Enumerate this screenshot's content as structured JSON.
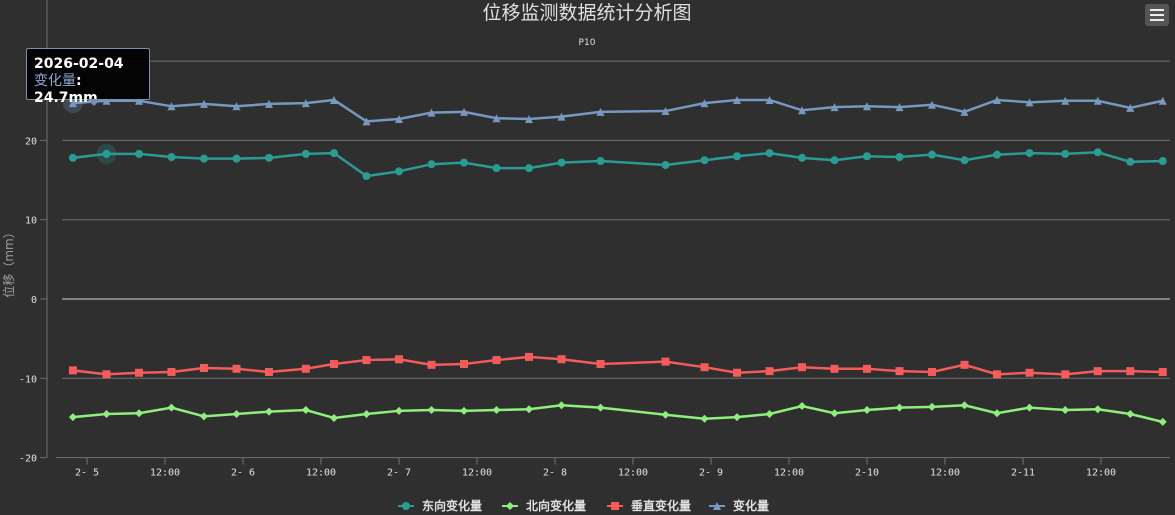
{
  "chart_data": {
    "type": "line",
    "title": "位移监测数据统计分析图",
    "subtitle": "P10",
    "ylabel": "位移（mm）",
    "xlabel": "",
    "ylim": [
      -20,
      30
    ],
    "yticks": [
      -20,
      -10,
      0,
      10,
      20
    ],
    "xticks": [
      "2- 5",
      "12:00",
      "2- 6",
      "12:00",
      "2- 7",
      "12:00",
      "2- 8",
      "12:00",
      "2- 9",
      "12:00",
      "2-10",
      "12:00",
      "2-11",
      "12:00"
    ],
    "grid": true,
    "legend_position": "bottom",
    "x": [
      "2026-02-04 21:50",
      "2026-02-05 03:00",
      "2026-02-05 08:00",
      "2026-02-05 13:00",
      "2026-02-05 18:00",
      "2026-02-05 23:00",
      "2026-02-06 04:00",
      "2026-02-06 09:40",
      "2026-02-06 14:00",
      "2026-02-06 19:00",
      "2026-02-07 00:00",
      "2026-02-07 05:00",
      "2026-02-07 10:00",
      "2026-02-07 15:00",
      "2026-02-07 20:00",
      "2026-02-08 01:00",
      "2026-02-08 07:00",
      "2026-02-08 17:00",
      "2026-02-08 23:00",
      "2026-02-09 04:00",
      "2026-02-09 09:00",
      "2026-02-09 14:00",
      "2026-02-09 19:00",
      "2026-02-10 00:00",
      "2026-02-10 05:00",
      "2026-02-10 10:00",
      "2026-02-10 15:00",
      "2026-02-10 20:00",
      "2026-02-11 01:00",
      "2026-02-11 06:30",
      "2026-02-11 11:30",
      "2026-02-11 16:30",
      "2026-02-11 21:30"
    ],
    "series": [
      {
        "name": "东向变化量",
        "color": "#2b9c94",
        "marker": "circle",
        "values": [
          17.8,
          18.3,
          18.3,
          17.9,
          17.7,
          17.7,
          17.8,
          18.3,
          18.4,
          15.5,
          16.1,
          17.0,
          17.2,
          16.5,
          16.5,
          17.2,
          17.4,
          16.9,
          17.5,
          18.0,
          18.4,
          17.8,
          17.5,
          18.0,
          17.9,
          18.2,
          17.5,
          18.2,
          18.4,
          18.3,
          18.5,
          17.3,
          17.4
        ]
      },
      {
        "name": "北向变化量",
        "color": "#90ee7e",
        "marker": "diamond",
        "values": [
          -14.9,
          -14.5,
          -14.4,
          -13.7,
          -14.8,
          -14.5,
          -14.2,
          -14.0,
          -15.0,
          -14.5,
          -14.1,
          -14.0,
          -14.1,
          -14.0,
          -13.9,
          -13.4,
          -13.7,
          -14.6,
          -15.1,
          -14.9,
          -14.5,
          -13.5,
          -14.4,
          -14.0,
          -13.7,
          -13.6,
          -13.4,
          -14.4,
          -13.7,
          -14.0,
          -13.9,
          -14.5,
          -15.5
        ]
      },
      {
        "name": "垂直变化量",
        "color": "#f45b5b",
        "marker": "square",
        "values": [
          -9.0,
          -9.5,
          -9.3,
          -9.2,
          -8.7,
          -8.8,
          -9.2,
          -8.8,
          -8.2,
          -7.7,
          -7.6,
          -8.3,
          -8.2,
          -7.7,
          -7.3,
          -7.6,
          -8.2,
          -7.9,
          -8.6,
          -9.3,
          -9.1,
          -8.6,
          -8.8,
          -8.8,
          -9.1,
          -9.2,
          -8.3,
          -9.5,
          -9.3,
          -9.5,
          -9.1,
          -9.1,
          -9.2
        ]
      },
      {
        "name": "变化量",
        "color": "#7798bf",
        "marker": "triangle",
        "values": [
          24.7,
          25.0,
          25.0,
          24.3,
          24.6,
          24.3,
          24.6,
          24.7,
          25.1,
          22.4,
          22.7,
          23.5,
          23.6,
          22.8,
          22.7,
          23.0,
          23.6,
          23.7,
          24.7,
          25.1,
          25.1,
          23.8,
          24.2,
          24.3,
          24.2,
          24.5,
          23.6,
          25.1,
          24.8,
          25.0,
          25.0,
          24.1,
          25.0
        ]
      }
    ],
    "tooltip": {
      "date": "2026-02-04",
      "series_name": "变化量",
      "value_text": ": 24.7mm"
    }
  },
  "ui": {
    "menu_icon": "hamburger-menu-icon"
  }
}
